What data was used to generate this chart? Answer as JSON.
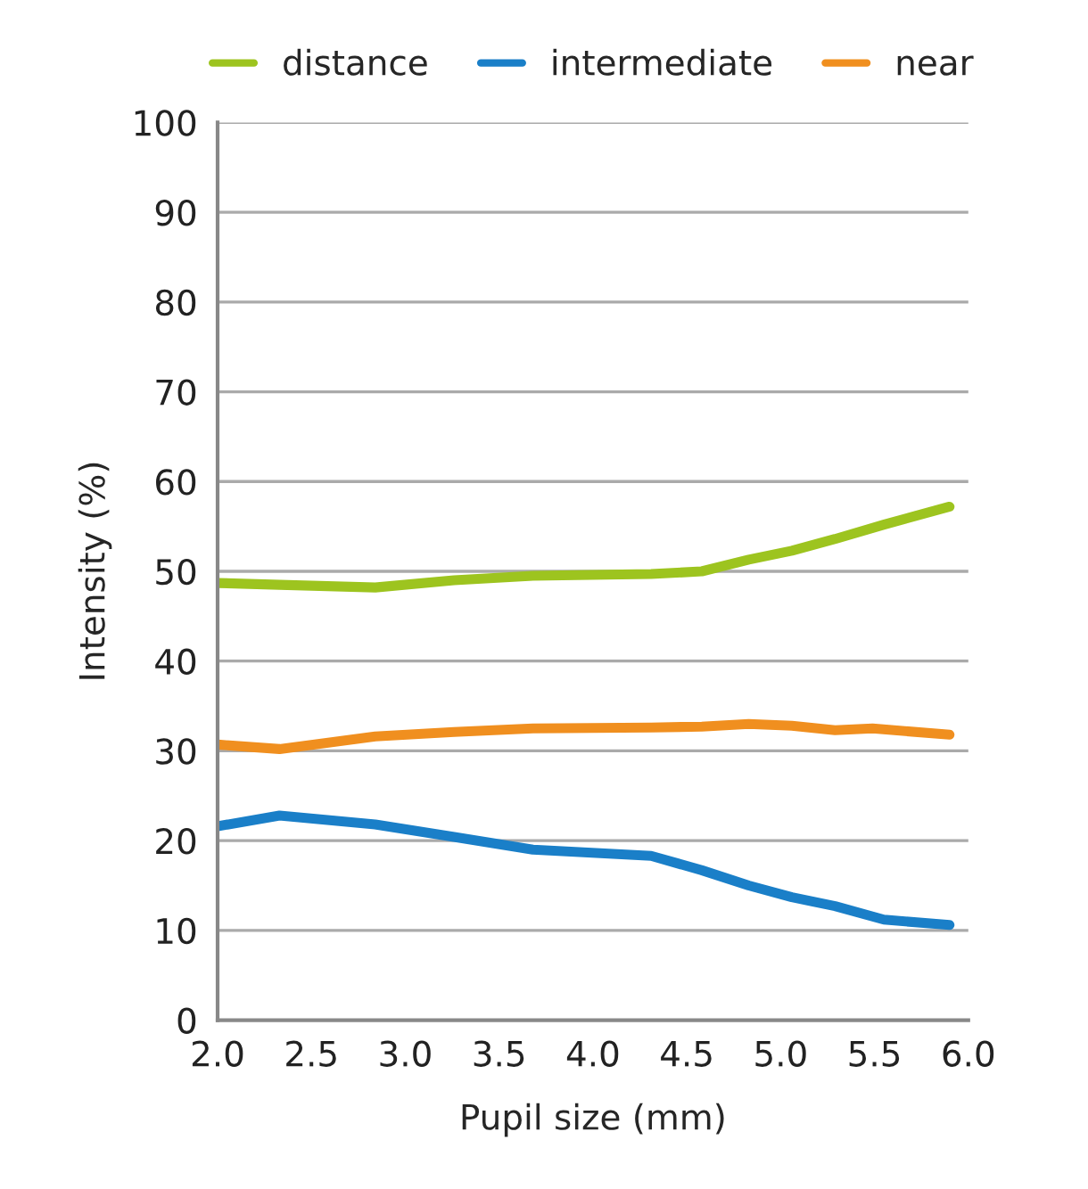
{
  "chart_data": {
    "type": "line",
    "xlabel": "Pupil size (mm)",
    "ylabel": "Intensity (%)",
    "series": [
      {
        "name": "distance",
        "color": "#9dc41f",
        "x": [
          2.0,
          2.33,
          2.84,
          3.26,
          3.68,
          4.31,
          4.58,
          4.83,
          5.06,
          5.29,
          5.55,
          5.9
        ],
        "values": [
          48.7,
          48.5,
          48.2,
          49.0,
          49.5,
          49.7,
          50.0,
          51.3,
          52.3,
          53.6,
          55.2,
          57.2
        ]
      },
      {
        "name": "intermediate",
        "color": "#1a7fc8",
        "x": [
          2.0,
          2.33,
          2.84,
          3.26,
          3.68,
          4.31,
          4.58,
          4.83,
          5.06,
          5.29,
          5.55,
          5.9
        ],
        "values": [
          21.6,
          22.8,
          21.8,
          20.4,
          19.0,
          18.3,
          16.7,
          15.0,
          13.7,
          12.7,
          11.2,
          10.6
        ]
      },
      {
        "name": "near",
        "color": "#f08f1f",
        "x": [
          2.0,
          2.33,
          2.84,
          3.26,
          3.68,
          4.31,
          4.58,
          4.83,
          5.06,
          5.29,
          5.49,
          5.9
        ],
        "values": [
          30.7,
          30.2,
          31.6,
          32.1,
          32.5,
          32.6,
          32.7,
          33.0,
          32.8,
          32.3,
          32.5,
          31.8
        ]
      }
    ],
    "xlim": [
      2.0,
      6.0
    ],
    "xticks": [
      {
        "value": 2.0,
        "label": "2.0"
      },
      {
        "value": 2.5,
        "label": "2.5"
      },
      {
        "value": 3.0,
        "label": "3.0"
      },
      {
        "value": 3.5,
        "label": "3.5"
      },
      {
        "value": 4.0,
        "label": "4.0"
      },
      {
        "value": 4.5,
        "label": "4.5"
      },
      {
        "value": 5.0,
        "label": "5.0"
      },
      {
        "value": 5.5,
        "label": "5.5"
      },
      {
        "value": 6.0,
        "label": "6.0"
      }
    ],
    "ylim": [
      0,
      100
    ],
    "yticks": [
      0,
      10,
      20,
      30,
      40,
      50,
      60,
      70,
      80,
      90,
      100
    ],
    "grid": "y",
    "legend": "top",
    "marker": "none",
    "line_style": "solid"
  }
}
